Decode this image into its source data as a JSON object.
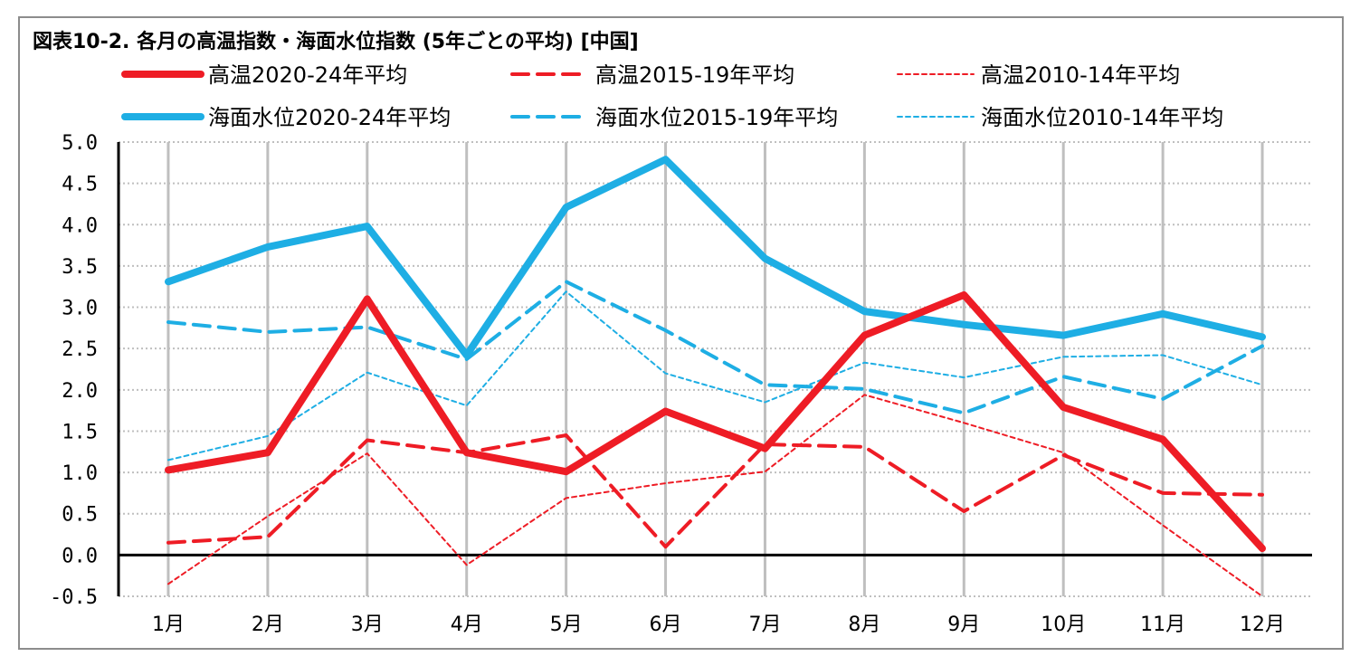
{
  "chart_data": {
    "type": "line",
    "title": "図表10-2. 各月の高温指数・海面水位指数 (5年ごとの平均) [中国]",
    "categories": [
      "1月",
      "2月",
      "3月",
      "4月",
      "5月",
      "6月",
      "7月",
      "8月",
      "9月",
      "10月",
      "11月",
      "12月"
    ],
    "ylim": [
      -0.5,
      5.0
    ],
    "yticks": [
      "5.0",
      "4.5",
      "4.0",
      "3.5",
      "3.0",
      "2.5",
      "2.0",
      "1.5",
      "1.0",
      "0.5",
      "0.0",
      "-0.5"
    ],
    "ytick_values": [
      5.0,
      4.5,
      4.0,
      3.5,
      3.0,
      2.5,
      2.0,
      1.5,
      1.0,
      0.5,
      0.0,
      -0.5
    ],
    "grid": true,
    "legend_position": "top",
    "series": [
      {
        "name": "高温2020-24年平均",
        "color": "#ee1c25",
        "style": "solid-thick",
        "values": [
          1.03,
          1.24,
          3.1,
          1.24,
          1.01,
          1.74,
          1.29,
          2.66,
          3.15,
          1.79,
          1.4,
          0.08
        ]
      },
      {
        "name": "高温2015-19年平均",
        "color": "#ee1c25",
        "style": "dashed-medium",
        "values": [
          0.15,
          0.22,
          1.39,
          1.24,
          1.45,
          0.1,
          1.34,
          1.31,
          0.53,
          1.21,
          0.75,
          0.73
        ]
      },
      {
        "name": "高温2010-14年平均",
        "color": "#ee1c25",
        "style": "dashed-thin",
        "values": [
          -0.35,
          0.47,
          1.23,
          -0.12,
          0.69,
          0.87,
          1.01,
          1.94,
          1.6,
          1.24,
          0.36,
          -0.5
        ]
      },
      {
        "name": "海面水位2020-24年平均",
        "color": "#1eaee4",
        "style": "solid-thick",
        "values": [
          3.31,
          3.73,
          3.98,
          2.42,
          4.21,
          4.79,
          3.59,
          2.95,
          2.79,
          2.66,
          2.92,
          2.64
        ]
      },
      {
        "name": "海面水位2015-19年平均",
        "color": "#1eaee4",
        "style": "dashed-medium",
        "values": [
          2.82,
          2.7,
          2.76,
          2.37,
          3.31,
          2.72,
          2.06,
          2.01,
          1.72,
          2.16,
          1.89,
          2.53
        ]
      },
      {
        "name": "海面水位2010-14年平均",
        "color": "#1eaee4",
        "style": "dashed-thin",
        "values": [
          1.15,
          1.44,
          2.21,
          1.81,
          3.19,
          2.2,
          1.85,
          2.33,
          2.15,
          2.4,
          2.42,
          2.06
        ]
      }
    ]
  }
}
